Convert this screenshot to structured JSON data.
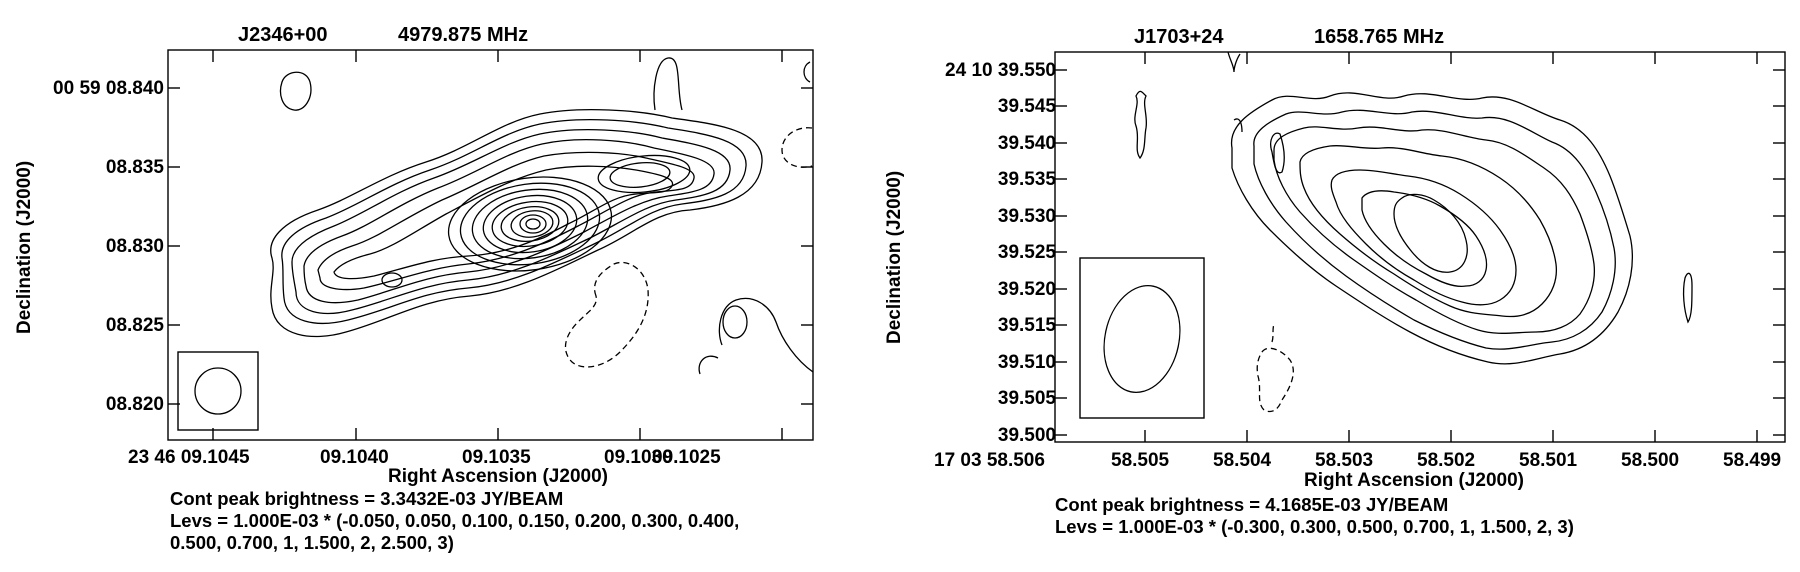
{
  "panels": [
    {
      "source": "J2346+00",
      "frequency": "4979.875 MHz",
      "y_axis_label": "Declination (J2000)",
      "x_axis_label": "Right Ascension (J2000)",
      "y_ticks": [
        "00 59 08.840",
        "08.835",
        "08.830",
        "08.825",
        "08.820"
      ],
      "x_ticks": [
        "23 46 09.1045",
        "09.1040",
        "09.1035",
        "09.1030",
        "09.1025"
      ],
      "peak_brightness": "Cont peak brightness = 3.3432E-03 JY/BEAM",
      "levels_line1": "Levs = 1.000E-03 * (-0.050, 0.050, 0.100, 0.150, 0.200, 0.300, 0.400,",
      "levels_line2": "0.500, 0.700, 1, 1.500, 2, 2.500, 3)"
    },
    {
      "source": "J1703+24",
      "frequency": "1658.765 MHz",
      "y_axis_label": "Declination (J2000)",
      "x_axis_label": "Right Ascension (J2000)",
      "y_ticks": [
        "24 10 39.550",
        "39.545",
        "39.540",
        "39.535",
        "39.530",
        "39.525",
        "39.520",
        "39.515",
        "39.510",
        "39.505",
        "39.500"
      ],
      "x_ticks": [
        "17 03 58.506",
        "58.505",
        "58.504",
        "58.503",
        "58.502",
        "58.501",
        "58.500",
        "58.499"
      ],
      "peak_brightness": "Cont peak brightness = 4.1685E-03 JY/BEAM",
      "levels_line1": "Levs = 1.000E-03 * (-0.300, 0.300, 0.500, 0.700, 1, 1.500, 2, 3)"
    }
  ]
}
